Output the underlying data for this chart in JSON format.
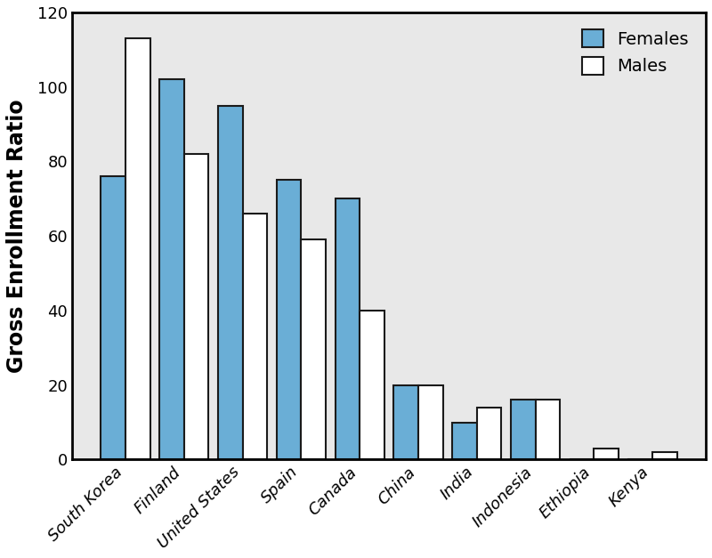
{
  "countries": [
    "South Korea",
    "Finland",
    "United States",
    "Spain",
    "Canada",
    "China",
    "India",
    "Indonesia",
    "Ethiopia",
    "Kenya"
  ],
  "females": [
    76,
    102,
    95,
    75,
    70,
    20,
    10,
    16,
    0,
    0
  ],
  "males": [
    113,
    82,
    66,
    59,
    40,
    20,
    14,
    16,
    3,
    2
  ],
  "female_color": "#6AAED6",
  "male_color": "#FFFFFF",
  "bar_edge_color": "#1A1A1A",
  "ylabel": "Gross Enrollment Ratio",
  "ylim": [
    0,
    120
  ],
  "yticks": [
    0,
    20,
    40,
    60,
    80,
    100,
    120
  ],
  "plot_bg_color": "#E8E8E8",
  "figure_bg_color": "#FFFFFF",
  "legend_labels": [
    "Females",
    "Males"
  ],
  "bar_width": 0.42,
  "ylabel_fontsize": 17,
  "tick_fontsize": 13,
  "legend_fontsize": 14,
  "spine_linewidth": 2.0
}
